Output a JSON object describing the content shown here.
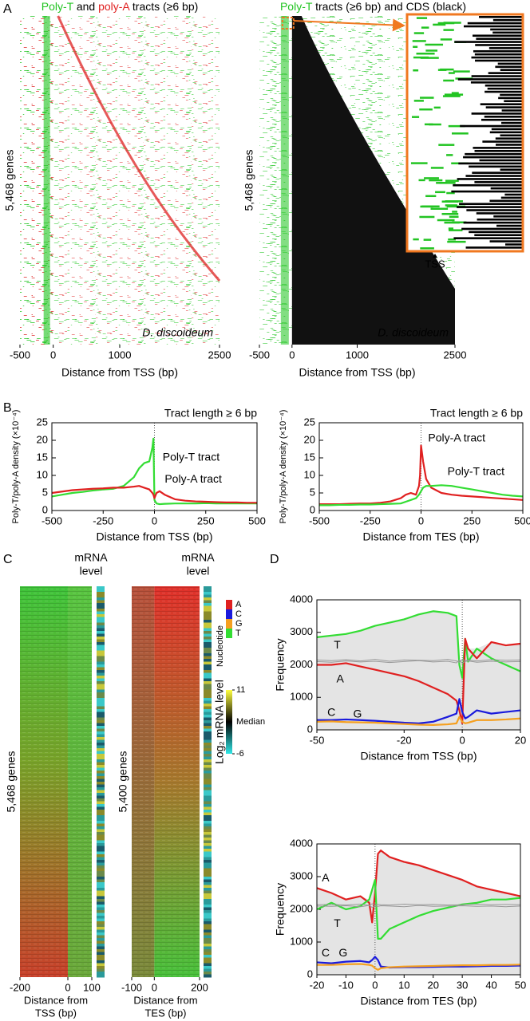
{
  "panel_labels": [
    "A",
    "B",
    "C",
    "D"
  ],
  "chart_data": [
    {
      "type": "heatmap",
      "style": "tracts",
      "title_parts": [
        "Poly-T",
        "and",
        "poly-A",
        "tracts (≥6 bp)"
      ],
      "title_colors": [
        "#22c422",
        "#000000",
        "#e02020",
        "#000000"
      ],
      "ylabel": "5,468 genes",
      "xlabel": "Distance from TSS (bp)",
      "annotation": "D. discoideum",
      "xlim": [
        -500,
        2500
      ],
      "xticks": [
        -500,
        0,
        1000,
        2500
      ]
    },
    {
      "type": "heatmap",
      "style": "cds",
      "title_parts": [
        "Poly-T",
        "tracts (≥6 bp) and CDS (black)"
      ],
      "title_colors": [
        "#22c422",
        "#000000"
      ],
      "ylabel": "5,468 genes",
      "xlabel": "Distance from TSS (bp)",
      "annotation": "D. discoideum",
      "inset_label": "TSS",
      "xlim": [
        -500,
        2500
      ],
      "xticks": [
        -500,
        0,
        1000,
        2500
      ]
    },
    {
      "type": "line",
      "title": "Tract length ≥ 6 bp",
      "ylabel": "Poly-T/poly-A density (×10⁻⁴)",
      "xlabel": "Distance from TSS (bp)",
      "x": [
        -500,
        -450,
        -400,
        -350,
        -300,
        -250,
        -200,
        -150,
        -100,
        -75,
        -50,
        -25,
        -10,
        -5,
        0,
        10,
        25,
        50,
        100,
        150,
        200,
        250,
        300,
        350,
        400,
        450,
        500
      ],
      "series": [
        {
          "name": "Poly-T tract",
          "color": "#33dd33",
          "values": [
            4,
            4.5,
            5,
            5.3,
            5.7,
            6,
            6.2,
            7,
            9.5,
            12,
            13.5,
            14,
            18,
            20.5,
            3,
            2,
            1.8,
            1.9,
            2,
            2,
            2,
            2.1,
            2,
            2,
            2,
            2,
            2
          ]
        },
        {
          "name": "Poly-A tract",
          "color": "#e02020",
          "values": [
            5,
            5.4,
            5.8,
            6,
            6.2,
            6.3,
            6.5,
            6.5,
            6.8,
            7,
            6.5,
            6,
            5,
            4.5,
            3.5,
            5,
            5.5,
            4.5,
            3.2,
            2.8,
            2.6,
            2.5,
            2.4,
            2.3,
            2.3,
            2.2,
            2.2
          ]
        }
      ],
      "xlim": [
        -500,
        500
      ],
      "xticks": [
        -500,
        -250,
        0,
        250,
        500
      ],
      "ylim": [
        0,
        25
      ],
      "yticks": [
        0,
        5,
        10,
        15,
        20,
        25
      ]
    },
    {
      "type": "line",
      "title": "Tract length ≥ 6 bp",
      "ylabel": "Poly-T/poly-A density (×10⁻⁴)",
      "xlabel": "Distance from TES (bp)",
      "x": [
        -500,
        -450,
        -400,
        -350,
        -300,
        -250,
        -200,
        -150,
        -100,
        -75,
        -50,
        -25,
        -10,
        -5,
        0,
        10,
        25,
        50,
        100,
        150,
        200,
        250,
        300,
        350,
        400,
        450,
        500
      ],
      "series": [
        {
          "name": "Poly-A tract",
          "color": "#e02020",
          "values": [
            1.8,
            1.8,
            1.8,
            1.9,
            2,
            2,
            2.2,
            2.6,
            3.5,
            4.5,
            5,
            4.5,
            7,
            10,
            18.5,
            14,
            9,
            6.5,
            5,
            4.5,
            4.2,
            4,
            3.8,
            3.6,
            3.4,
            3.2,
            3
          ]
        },
        {
          "name": "Poly-T tract",
          "color": "#33dd33",
          "values": [
            1.5,
            1.5,
            1.6,
            1.6,
            1.7,
            1.7,
            1.8,
            1.9,
            2,
            2.5,
            3,
            3.5,
            4.5,
            5,
            5.5,
            6.5,
            7,
            7,
            7.2,
            7,
            6.5,
            6,
            5.5,
            5,
            4.5,
            4.2,
            4
          ]
        }
      ],
      "xlim": [
        -500,
        500
      ],
      "xticks": [
        -500,
        -250,
        0,
        250,
        500
      ],
      "ylim": [
        0,
        25
      ],
      "yticks": [
        0,
        5,
        10,
        15,
        20,
        25
      ]
    },
    {
      "type": "heatmap",
      "style": "tss",
      "title_lines": [
        "mRNA",
        "level"
      ],
      "ylabel": "5,468 genes",
      "xlabel_lines": [
        "Distance from",
        "TSS (bp)"
      ],
      "xlim": [
        -200,
        100
      ],
      "xticks": [
        -200,
        0,
        100
      ]
    },
    {
      "type": "heatmap",
      "style": "tes",
      "title_lines": [
        "mRNA",
        "level"
      ],
      "ylabel": "5,400 genes",
      "xlabel_lines": [
        "Distance from",
        "TES (bp)"
      ],
      "xlim": [
        -100,
        200
      ],
      "xticks": [
        -100,
        0,
        200
      ]
    },
    {
      "type": "colorbar",
      "title": "Nucleotide",
      "categories": [
        "A",
        "C",
        "G",
        "T"
      ],
      "colors": [
        "#e02020",
        "#1a1adc",
        "#f5a020",
        "#33dd33"
      ],
      "colorbar_title": "Log₂ mRNA level",
      "clim": [
        -6,
        11
      ],
      "colorbar_ticks": [
        11,
        -6
      ],
      "center_label": "Median"
    },
    {
      "type": "line",
      "shade": true,
      "ylabel": "Frequency",
      "xlabel": "Distance from TSS (bp)",
      "x": [
        -50,
        -45,
        -40,
        -35,
        -30,
        -25,
        -20,
        -15,
        -10,
        -5,
        -2,
        -1,
        0,
        1,
        2,
        5,
        10,
        15,
        20
      ],
      "series": [
        {
          "name": "T",
          "color": "#33dd33",
          "values": [
            2850,
            2900,
            2950,
            3050,
            3200,
            3300,
            3400,
            3550,
            3650,
            3600,
            3500,
            2000,
            1600,
            2800,
            2100,
            2500,
            2200,
            2000,
            1800
          ]
        },
        {
          "name": "A",
          "color": "#e02020",
          "values": [
            2000,
            2000,
            2050,
            1950,
            1850,
            1750,
            1650,
            1500,
            1300,
            1100,
            900,
            600,
            200,
            2800,
            2500,
            2200,
            2700,
            2600,
            2650
          ]
        },
        {
          "name": "C",
          "color": "#1a1adc",
          "values": [
            300,
            300,
            320,
            300,
            280,
            250,
            220,
            200,
            250,
            400,
            500,
            950,
            550,
            350,
            400,
            600,
            500,
            550,
            600
          ]
        },
        {
          "name": "G",
          "color": "#f5a020",
          "values": [
            250,
            260,
            240,
            230,
            220,
            200,
            180,
            160,
            150,
            170,
            200,
            400,
            250,
            200,
            220,
            300,
            300,
            320,
            350
          ]
        },
        {
          "color": "#999999",
          "values": [
            2100,
            2080,
            2120,
            2090,
            2110,
            2070,
            2100,
            2130,
            2090,
            2110,
            2060,
            2150,
            2050,
            2100,
            2120,
            2080,
            2110,
            2090,
            2100
          ]
        },
        {
          "color": "#999999",
          "values": [
            2150,
            2130,
            2160,
            2120,
            2170,
            2110,
            2150,
            2140,
            2130,
            2170,
            2120,
            2080,
            2170,
            2130,
            2150,
            2120,
            2160,
            2140,
            2150
          ]
        }
      ],
      "xlim": [
        -50,
        20
      ],
      "xticks": [
        -50,
        -20,
        0,
        20
      ],
      "ylim": [
        0,
        4000
      ],
      "yticks": [
        0,
        1000,
        2000,
        3000,
        4000
      ]
    },
    {
      "type": "line",
      "shade": true,
      "ylabel": "Frequency",
      "xlabel": "Distance from TES (bp)",
      "x": [
        -20,
        -15,
        -10,
        -5,
        -2,
        -1,
        0,
        1,
        2,
        5,
        10,
        15,
        20,
        25,
        30,
        35,
        40,
        45,
        50
      ],
      "series": [
        {
          "name": "A",
          "color": "#e02020",
          "values": [
            2650,
            2500,
            2300,
            2400,
            2200,
            1600,
            2500,
            3700,
            3800,
            3600,
            3450,
            3350,
            3200,
            3050,
            2900,
            2700,
            2600,
            2500,
            2400
          ]
        },
        {
          "name": "T",
          "color": "#33dd33",
          "values": [
            2000,
            2200,
            2000,
            2100,
            2300,
            2600,
            2900,
            1100,
            1100,
            1400,
            1600,
            1800,
            1950,
            2050,
            2150,
            2200,
            2300,
            2300,
            2350
          ]
        },
        {
          "name": "C",
          "color": "#1a1adc",
          "values": [
            380,
            350,
            400,
            420,
            380,
            450,
            550,
            450,
            250,
            220,
            230,
            230,
            240,
            250,
            250,
            260,
            270,
            270,
            280
          ]
        },
        {
          "name": "G",
          "color": "#f5a020",
          "values": [
            300,
            300,
            320,
            330,
            300,
            280,
            200,
            150,
            200,
            230,
            250,
            260,
            270,
            280,
            290,
            290,
            300,
            300,
            310
          ]
        },
        {
          "color": "#999999",
          "values": [
            2100,
            2090,
            2110,
            2080,
            2120,
            2060,
            2100,
            2090,
            2110,
            2100,
            2080,
            2120,
            2090,
            2100,
            2110,
            2090,
            2100,
            2080,
            2100
          ]
        },
        {
          "color": "#999999",
          "values": [
            2140,
            2150,
            2130,
            2160,
            2120,
            2170,
            2130,
            2150,
            2140,
            2130,
            2160,
            2140,
            2150,
            2130,
            2140,
            2160,
            2140,
            2150,
            2140
          ]
        }
      ],
      "xlim": [
        -20,
        50
      ],
      "xticks": [
        -20,
        -10,
        0,
        10,
        20,
        30,
        40,
        50
      ],
      "ylim": [
        0,
        4000
      ],
      "yticks": [
        0,
        1000,
        2000,
        3000,
        4000
      ]
    }
  ]
}
